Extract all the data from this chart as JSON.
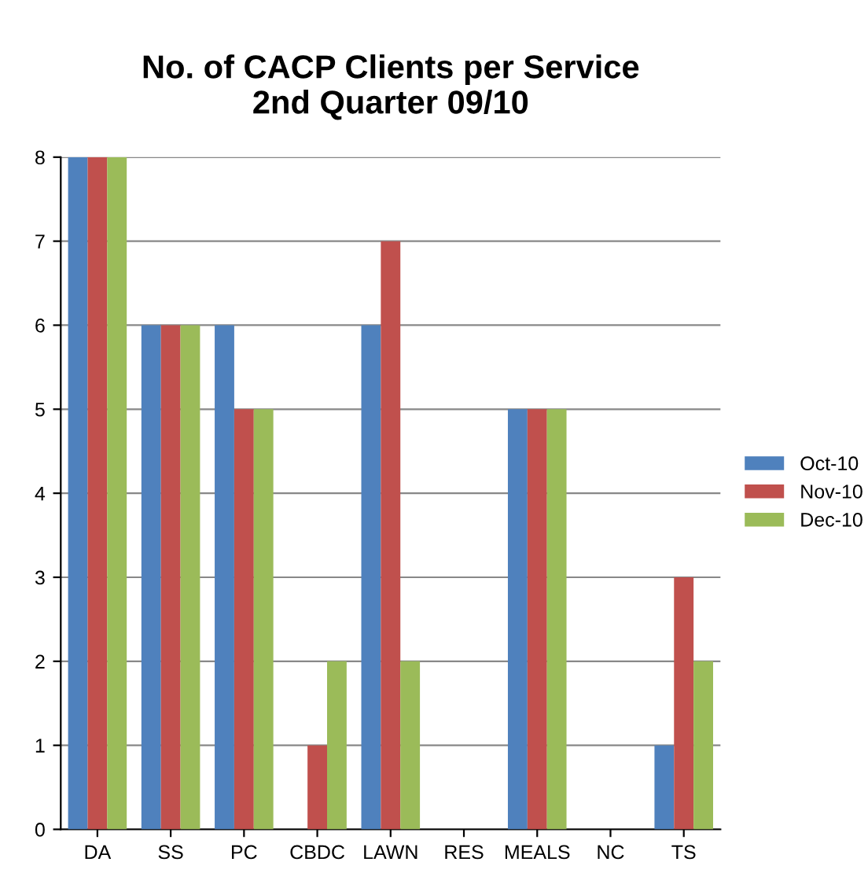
{
  "chart_data": {
    "type": "bar",
    "title": "No. of CACP Clients per Service\n2nd Quarter 09/10",
    "categories": [
      "DA",
      "SS",
      "PC",
      "CBDC",
      "LAWN",
      "RES",
      "MEALS",
      "NC",
      "TS"
    ],
    "series": [
      {
        "name": "Oct-10",
        "color": "#4f81bd",
        "values": [
          8,
          6,
          6,
          0,
          6,
          0,
          5,
          0,
          1
        ]
      },
      {
        "name": "Nov-10",
        "color": "#c0504d",
        "values": [
          8,
          6,
          5,
          1,
          7,
          0,
          5,
          0,
          3
        ]
      },
      {
        "name": "Dec-10",
        "color": "#9bbb59",
        "values": [
          8,
          6,
          5,
          2,
          2,
          0,
          5,
          0,
          2
        ]
      }
    ],
    "ylim": [
      0,
      8
    ],
    "yticks": [
      0,
      1,
      2,
      3,
      4,
      5,
      6,
      7,
      8
    ],
    "grid": "y",
    "legend": "right"
  }
}
